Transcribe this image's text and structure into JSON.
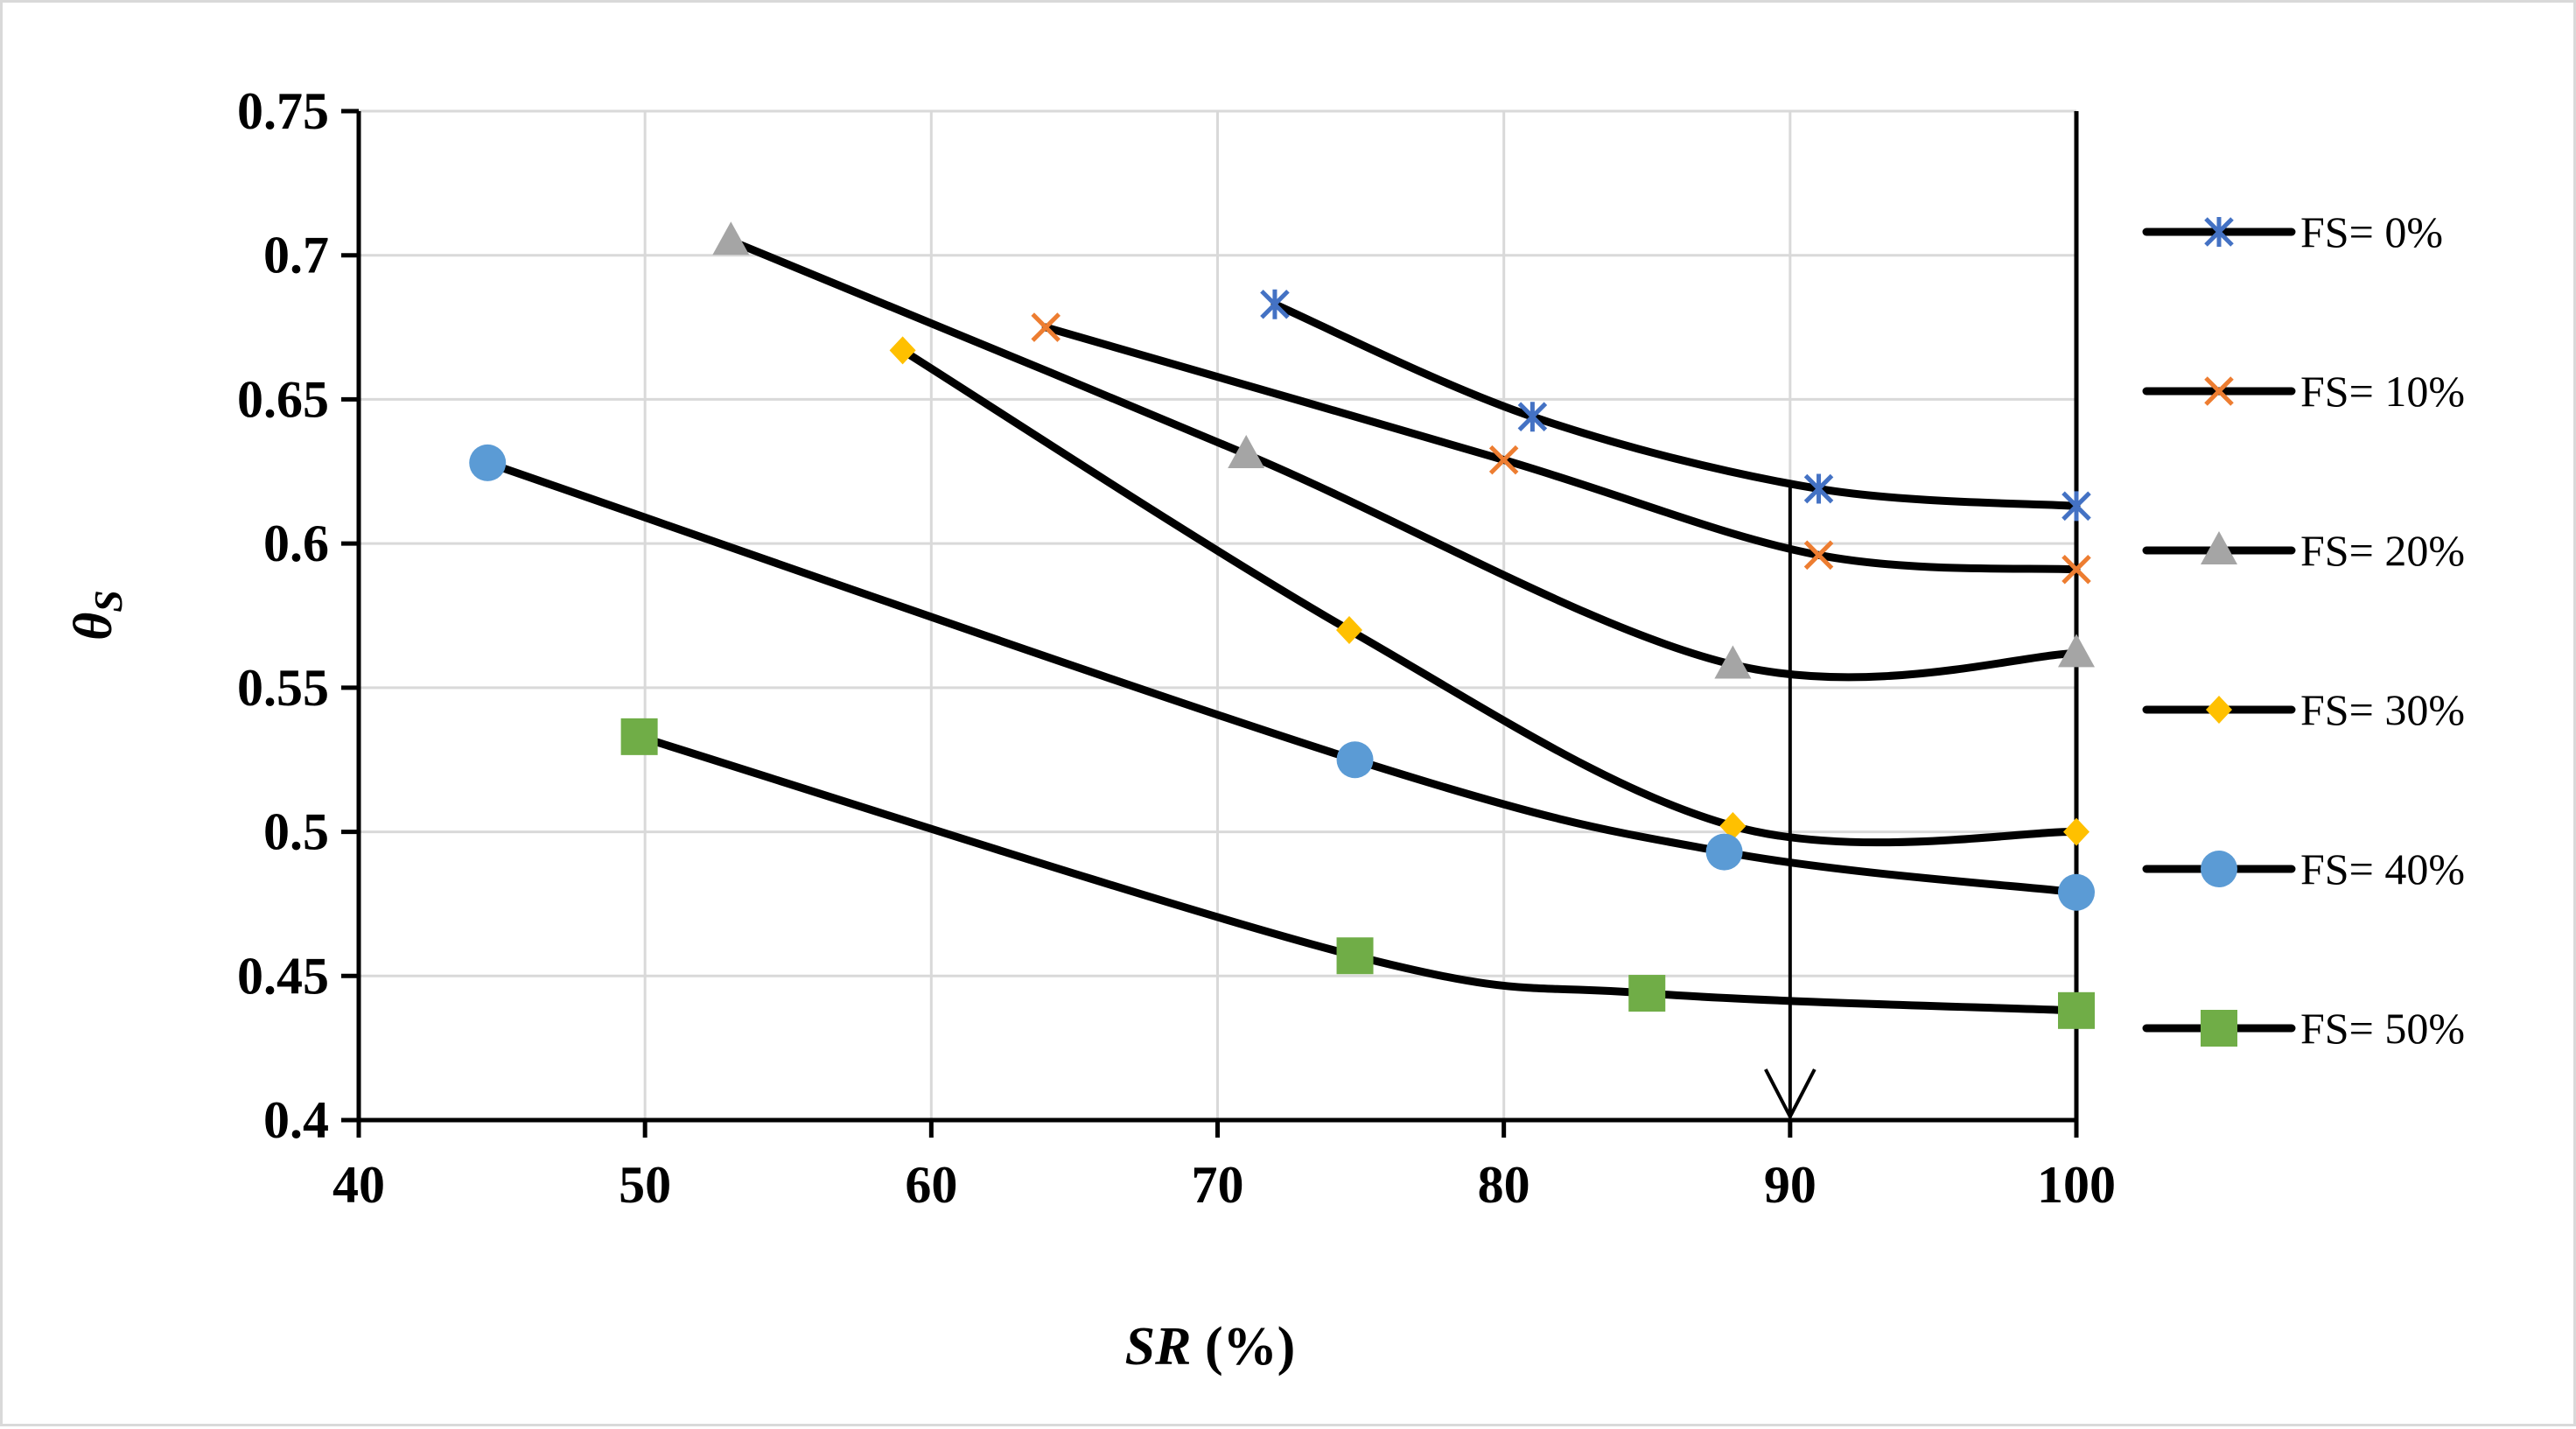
{
  "chart_data": {
    "type": "line",
    "title": "",
    "xlabel": "SR (%)",
    "xlabel_italic_part": "SR",
    "xlabel_rest": " (%)",
    "ylabel": "θS",
    "ylabel_main": "θ",
    "ylabel_sub": "S",
    "xlim": [
      40,
      100
    ],
    "ylim": [
      0.4,
      0.75
    ],
    "xticks": [
      40,
      50,
      60,
      70,
      80,
      90,
      100
    ],
    "xtick_labels": [
      "40",
      "50",
      "60",
      "70",
      "80",
      "90",
      "100"
    ],
    "yticks": [
      0.4,
      0.45,
      0.5,
      0.55,
      0.6,
      0.65,
      0.7,
      0.75
    ],
    "ytick_labels": [
      "0.4",
      "0.45",
      "0.5",
      "0.55",
      "0.6",
      "0.65",
      "0.7",
      "0.75"
    ],
    "grid": true,
    "legend_position": "right",
    "line_color": "#000000",
    "annotation": {
      "type": "arrow",
      "x": 90,
      "y_from": 0.62,
      "y_to": 0.4
    },
    "series": [
      {
        "name": "FS= 0%",
        "marker": "asterisk",
        "color": "#4472c4",
        "x": [
          72,
          81,
          91,
          100
        ],
        "y": [
          0.683,
          0.644,
          0.619,
          0.613
        ]
      },
      {
        "name": "FS= 10%",
        "marker": "x",
        "color": "#ed7d31",
        "x": [
          64,
          80,
          91,
          100
        ],
        "y": [
          0.675,
          0.629,
          0.596,
          0.591
        ]
      },
      {
        "name": "FS= 20%",
        "marker": "triangle",
        "color": "#a5a5a5",
        "x": [
          53,
          71,
          88,
          100
        ],
        "y": [
          0.705,
          0.631,
          0.558,
          0.562
        ]
      },
      {
        "name": "FS= 30%",
        "marker": "diamond",
        "color": "#ffc000",
        "x": [
          59,
          74.6,
          88,
          100
        ],
        "y": [
          0.667,
          0.57,
          0.502,
          0.5
        ]
      },
      {
        "name": "FS= 40%",
        "marker": "circle",
        "color": "#5b9bd5",
        "x": [
          44.5,
          74.8,
          87.7,
          100
        ],
        "y": [
          0.628,
          0.525,
          0.493,
          0.479
        ]
      },
      {
        "name": "FS= 50%",
        "marker": "square",
        "color": "#70ad47",
        "x": [
          49.8,
          74.8,
          85,
          100
        ],
        "y": [
          0.533,
          0.457,
          0.444,
          0.438
        ]
      }
    ]
  }
}
